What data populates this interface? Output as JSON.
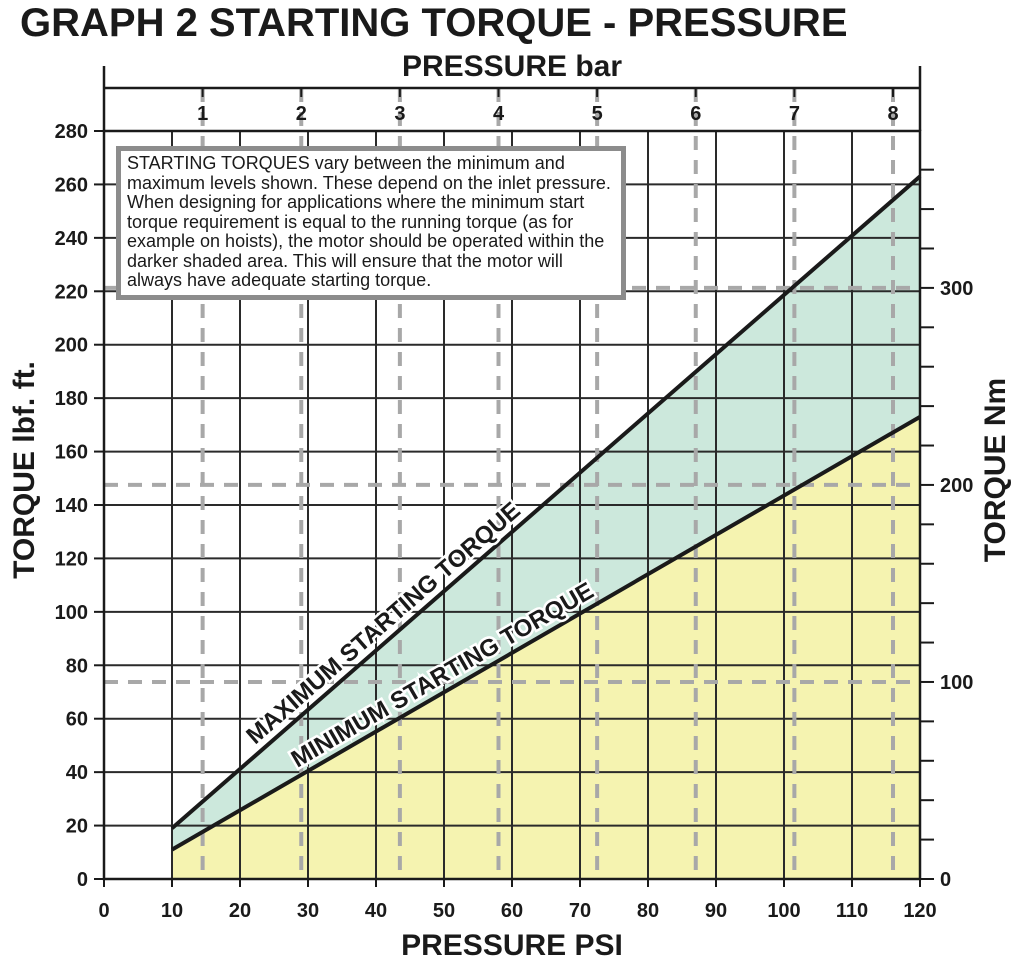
{
  "chart_data": {
    "type": "area",
    "title": "GRAPH 2 STARTING TORQUE - PRESSURE",
    "xlabel": "PRESSURE PSI",
    "ylabel": "TORQUE lbf. ft.",
    "x2label": "PRESSURE bar",
    "y2label": "TORQUE Nm",
    "xlim": [
      0,
      120
    ],
    "ylim": [
      0,
      280
    ],
    "x2lim_bar": [
      0,
      8.27
    ],
    "y2lim_nm": [
      0,
      379.6
    ],
    "x_ticks": [
      "0",
      "10",
      "20",
      "30",
      "40",
      "50",
      "60",
      "70",
      "80",
      "90",
      "100",
      "110",
      "120"
    ],
    "y_ticks": [
      "0",
      "20",
      "40",
      "60",
      "80",
      "100",
      "120",
      "140",
      "160",
      "180",
      "200",
      "220",
      "240",
      "260",
      "280"
    ],
    "x2_ticks": [
      "1",
      "2",
      "3",
      "4",
      "5",
      "6",
      "7",
      "8"
    ],
    "y2_ticks": [
      "0",
      "100",
      "200",
      "300"
    ],
    "grid": true,
    "series": [
      {
        "name": "MAXIMUM STARTING TORQUE",
        "x": [
          10,
          120
        ],
        "y": [
          19,
          263
        ],
        "color": "#1a1a1a"
      },
      {
        "name": "MINIMUM STARTING TORQUE",
        "x": [
          10,
          120
        ],
        "y": [
          11,
          173
        ],
        "color": "#1a1a1a"
      }
    ],
    "fill_colors": {
      "between_min_max": "#cce8dc",
      "below_min": "#f5f3b0"
    },
    "annotation": {
      "lead": "STARTING TORQUES",
      "text": " vary between the minimum and maximum levels shown. These depend on the inlet pressure. When designing for applications where the minimum start torque requirement is equal to the running torque (as for example on hoists), the motor should be operated within the darker shaded area. This will ensure that the motor will always have adequate starting torque."
    }
  }
}
